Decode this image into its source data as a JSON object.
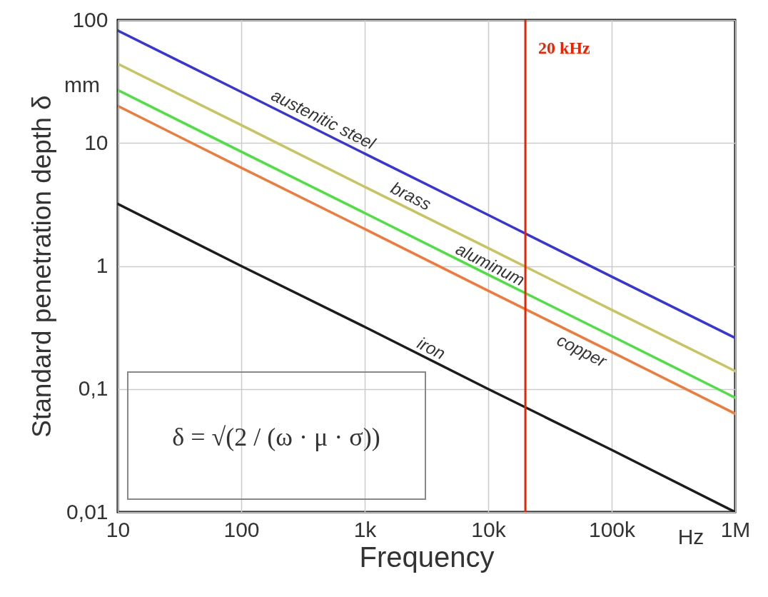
{
  "chart_data": {
    "type": "line",
    "xlabel": "Frequency",
    "ylabel": "Standard penetration depth δ",
    "log": "xy",
    "grid": true,
    "x": [
      10,
      100,
      1000,
      10000,
      100000,
      1000000
    ],
    "xlim": [
      10,
      1000000
    ],
    "xticks": [
      10,
      100,
      {
        "value": 1000,
        "label": "1k"
      },
      {
        "value": 10000,
        "label": "10k"
      },
      {
        "value": 100000,
        "label": "100k"
      },
      {
        "value": 1000000,
        "label": "1M"
      }
    ],
    "ylim": [
      0.01,
      100
    ],
    "yticks": [
      {
        "value": 0.01,
        "label": "0,01"
      },
      {
        "value": 0.1,
        "label": "0,1"
      },
      1,
      10,
      100
    ],
    "series": [
      {
        "name": "austenitic steel",
        "color": "#3636d8",
        "values": [
          82,
          26,
          8.2,
          2.6,
          0.82,
          0.26
        ]
      },
      {
        "name": "brass",
        "color": "#c8c460",
        "values": [
          44,
          14,
          4.4,
          1.4,
          0.44,
          0.14
        ]
      },
      {
        "name": "aluminum",
        "color": "#4ce040",
        "values": [
          27,
          8.5,
          2.7,
          0.85,
          0.27,
          0.085
        ]
      },
      {
        "name": "copper",
        "color": "#ef7a3a",
        "values": [
          20,
          6.3,
          2,
          0.63,
          0.2,
          0.063
        ]
      },
      {
        "name": "iron",
        "color": "#1c1c1c",
        "values": [
          3.2,
          1,
          0.32,
          0.1,
          0.032,
          0.01
        ]
      }
    ],
    "ref_lines": [
      {
        "axis": "x",
        "value": 20000,
        "label": "20 kHz",
        "color": "#ee2200"
      }
    ],
    "annotations": [
      "mm",
      "Hz",
      "δ = √(2 / (ω · μ · σ))"
    ]
  }
}
